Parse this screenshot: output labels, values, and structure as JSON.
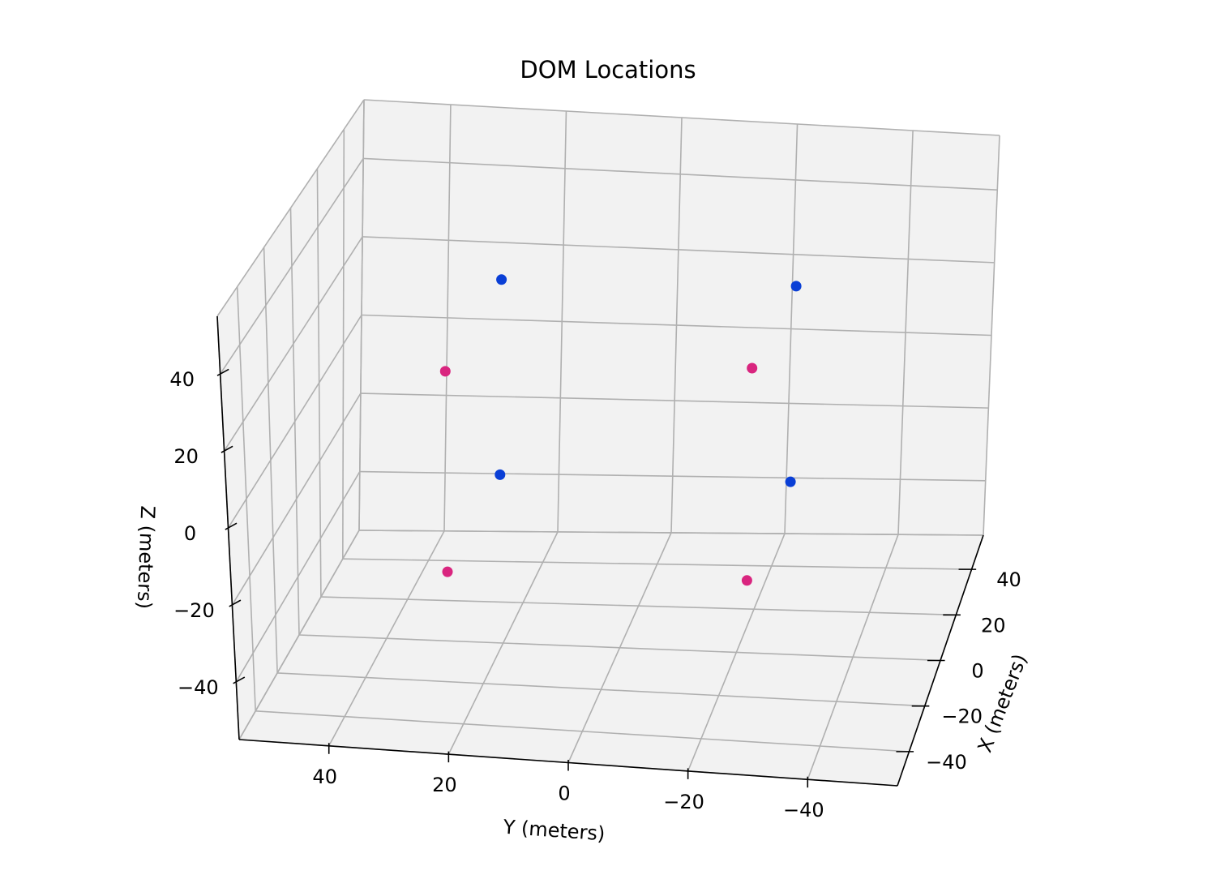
{
  "chart_data": {
    "type": "scatter",
    "projection": "3d",
    "title": "DOM Locations",
    "xlabel": "X (meters)",
    "ylabel": "Y (meters)",
    "zlabel": "Z (meters)",
    "xlim": [
      -55,
      55
    ],
    "ylim": [
      -55,
      55
    ],
    "zlim": [
      -55,
      55
    ],
    "x_ticks": [
      -40,
      -20,
      0,
      20,
      40
    ],
    "y_ticks": [
      40,
      20,
      0,
      -20,
      -40
    ],
    "z_ticks": [
      -40,
      -20,
      0,
      20,
      40
    ],
    "x_tick_labels": [
      "−40",
      "−20",
      "0",
      "20",
      "40"
    ],
    "y_tick_labels": [
      "40",
      "20",
      "0",
      "−20",
      "−40"
    ],
    "z_tick_labels": [
      "−40",
      "−20",
      "0",
      "20",
      "40"
    ],
    "grid": true,
    "points": [
      {
        "x": 25,
        "y": 25,
        "z": 25,
        "color": "#0a3fd6"
      },
      {
        "x": 25,
        "y": -25,
        "z": 25,
        "color": "#0a3fd6"
      },
      {
        "x": -25,
        "y": 25,
        "z": 25,
        "color": "#d9257f"
      },
      {
        "x": -25,
        "y": -25,
        "z": 25,
        "color": "#d9257f"
      },
      {
        "x": 25,
        "y": 25,
        "z": -25,
        "color": "#0a3fd6"
      },
      {
        "x": 25,
        "y": -25,
        "z": -25,
        "color": "#0a3fd6"
      },
      {
        "x": -25,
        "y": 25,
        "z": -25,
        "color": "#d9257f"
      },
      {
        "x": -25,
        "y": -25,
        "z": -25,
        "color": "#d9257f"
      }
    ],
    "colors": {
      "pane": "#f2f2f2",
      "grid": "#b0b0b0",
      "axis_line": "#000000"
    }
  }
}
